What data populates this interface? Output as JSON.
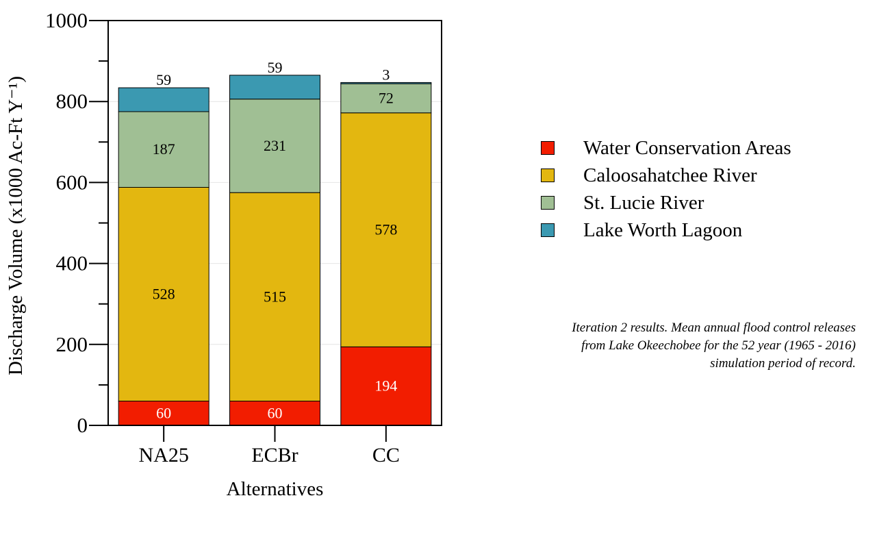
{
  "chart_data": {
    "type": "bar",
    "stacked": true,
    "categories": [
      "NA25",
      "ECBr",
      "CC"
    ],
    "series": [
      {
        "name": "Water Conservation Areas",
        "color": "#f21d00",
        "label_color": "#ffffff",
        "values": [
          60,
          60,
          194
        ]
      },
      {
        "name": "Caloosahatchee River",
        "color": "#e3b710",
        "label_color": "#000000",
        "values": [
          528,
          515,
          578
        ]
      },
      {
        "name": "St. Lucie River",
        "color": "#a0bf94",
        "label_color": "#000000",
        "values": [
          187,
          231,
          72
        ]
      },
      {
        "name": "Lake Worth Lagoon",
        "color": "#3b99b1",
        "label_color": "#000000",
        "values": [
          59,
          59,
          3
        ]
      }
    ],
    "xlabel": "Alternatives",
    "ylabel": "Discharge Volume (x1000 Ac-Ft Y⁻¹)",
    "ylim": [
      0,
      1000
    ],
    "yticks": [
      "0",
      "200",
      "400",
      "600",
      "800",
      "1000"
    ],
    "grid": true,
    "legend_position": "right"
  },
  "note": {
    "line1": "Iteration 2 results. Mean annual flood control releases",
    "line2": "from Lake Okeechobee for the 52 year (1965 - 2016)",
    "line3": "simulation period of record."
  }
}
